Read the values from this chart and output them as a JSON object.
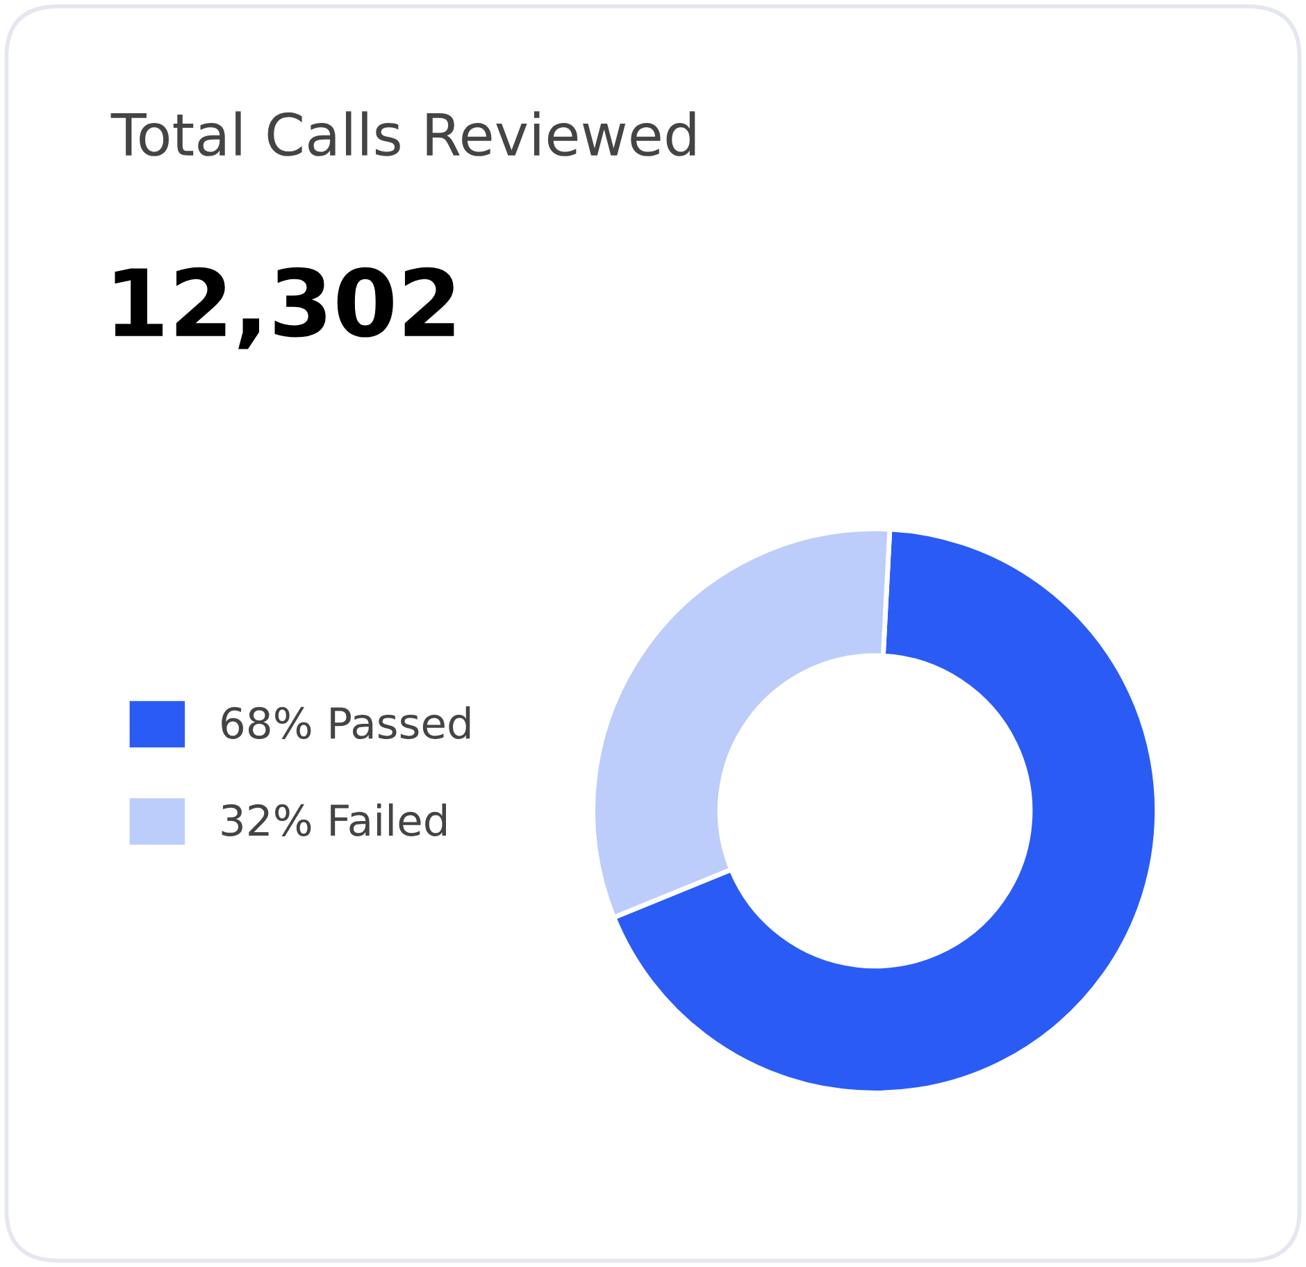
{
  "chart_data": {
    "type": "donut",
    "title": "Total Calls Reviewed",
    "subtitle": "12,302",
    "categories": [
      "Passed",
      "Failed"
    ],
    "values": [
      68,
      32
    ],
    "value_labels": [
      "68%",
      "32%"
    ],
    "colors": [
      "#2a5cf5",
      "#bccdfb"
    ],
    "legend": "left"
  }
}
